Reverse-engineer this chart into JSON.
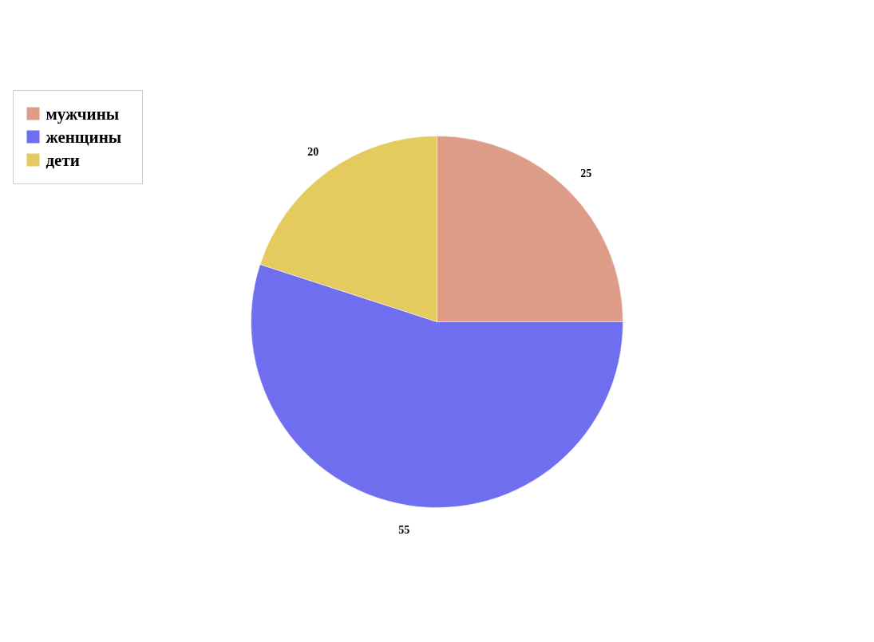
{
  "chart_data": {
    "type": "pie",
    "categories": [
      "мужчины",
      "женщины",
      "дети"
    ],
    "values": [
      25,
      55,
      20
    ],
    "colors": [
      "#de9d88",
      "#6f6eee",
      "#e4cb60"
    ],
    "data_labels": true,
    "legend": "top left"
  }
}
